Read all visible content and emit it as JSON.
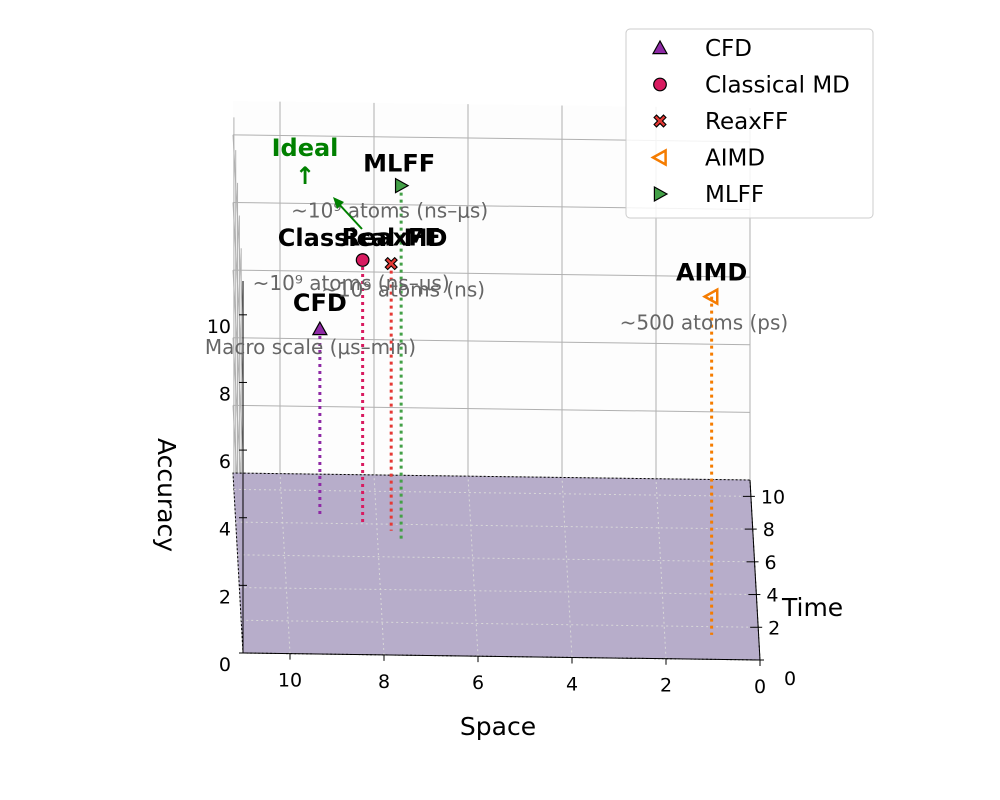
{
  "chart_data": {
    "type": "scatter",
    "projection": "3d",
    "axes": {
      "x": {
        "label": "Space",
        "ticks": [
          0,
          2,
          4,
          6,
          8,
          10
        ],
        "range": [
          0,
          11
        ]
      },
      "y": {
        "label": "Time",
        "ticks": [
          0,
          2,
          4,
          6,
          8,
          10
        ],
        "range": [
          0,
          11
        ]
      },
      "z": {
        "label": "Accuracy",
        "ticks": [
          0,
          2,
          4,
          6,
          8,
          10
        ],
        "range": [
          0,
          11
        ]
      }
    },
    "grid": true,
    "base_plane": {
      "color": "#b3a9c7"
    },
    "series": [
      {
        "name": "CFD",
        "marker": "triangle-up",
        "color": "#8e2aa5",
        "points": [
          {
            "space": 9.2,
            "time": 8.5,
            "accuracy": 5.5,
            "label": "CFD",
            "annotation": "Macro scale (μs–min)"
          }
        ]
      },
      {
        "name": "Classical MD",
        "marker": "circle",
        "color": "#d81b60",
        "points": [
          {
            "space": 8.3,
            "time": 8.0,
            "accuracy": 7.8,
            "label": "Classical MD",
            "annotation": "~10⁹ atoms (ns–μs)"
          }
        ]
      },
      {
        "name": "ReaxFF",
        "marker": "x",
        "color": "#e53935",
        "points": [
          {
            "space": 7.7,
            "time": 7.6,
            "accuracy": 7.9,
            "label": "ReaxFF",
            "annotation": "~10⁹ atoms (ns)"
          }
        ]
      },
      {
        "name": "AIMD",
        "marker": "triangle-left",
        "color": "#f57c00",
        "points": [
          {
            "space": 1.0,
            "time": 1.5,
            "accuracy": 10.0,
            "label": "AIMD",
            "annotation": "~500 atoms (ps)"
          }
        ]
      },
      {
        "name": "MLFF",
        "marker": "triangle-right",
        "color": "#43a047",
        "points": [
          {
            "space": 7.5,
            "time": 7.0,
            "accuracy": 10.5,
            "label": "MLFF",
            "annotation": "~10⁹ atoms (ns–μs)"
          }
        ]
      }
    ],
    "ideal": {
      "label": "Ideal",
      "arrow": "↑",
      "color": "#008000"
    },
    "legend": {
      "position": "top-right",
      "entries": [
        "CFD",
        "Classical MD",
        "ReaxFF",
        "AIMD",
        "MLFF"
      ]
    }
  }
}
